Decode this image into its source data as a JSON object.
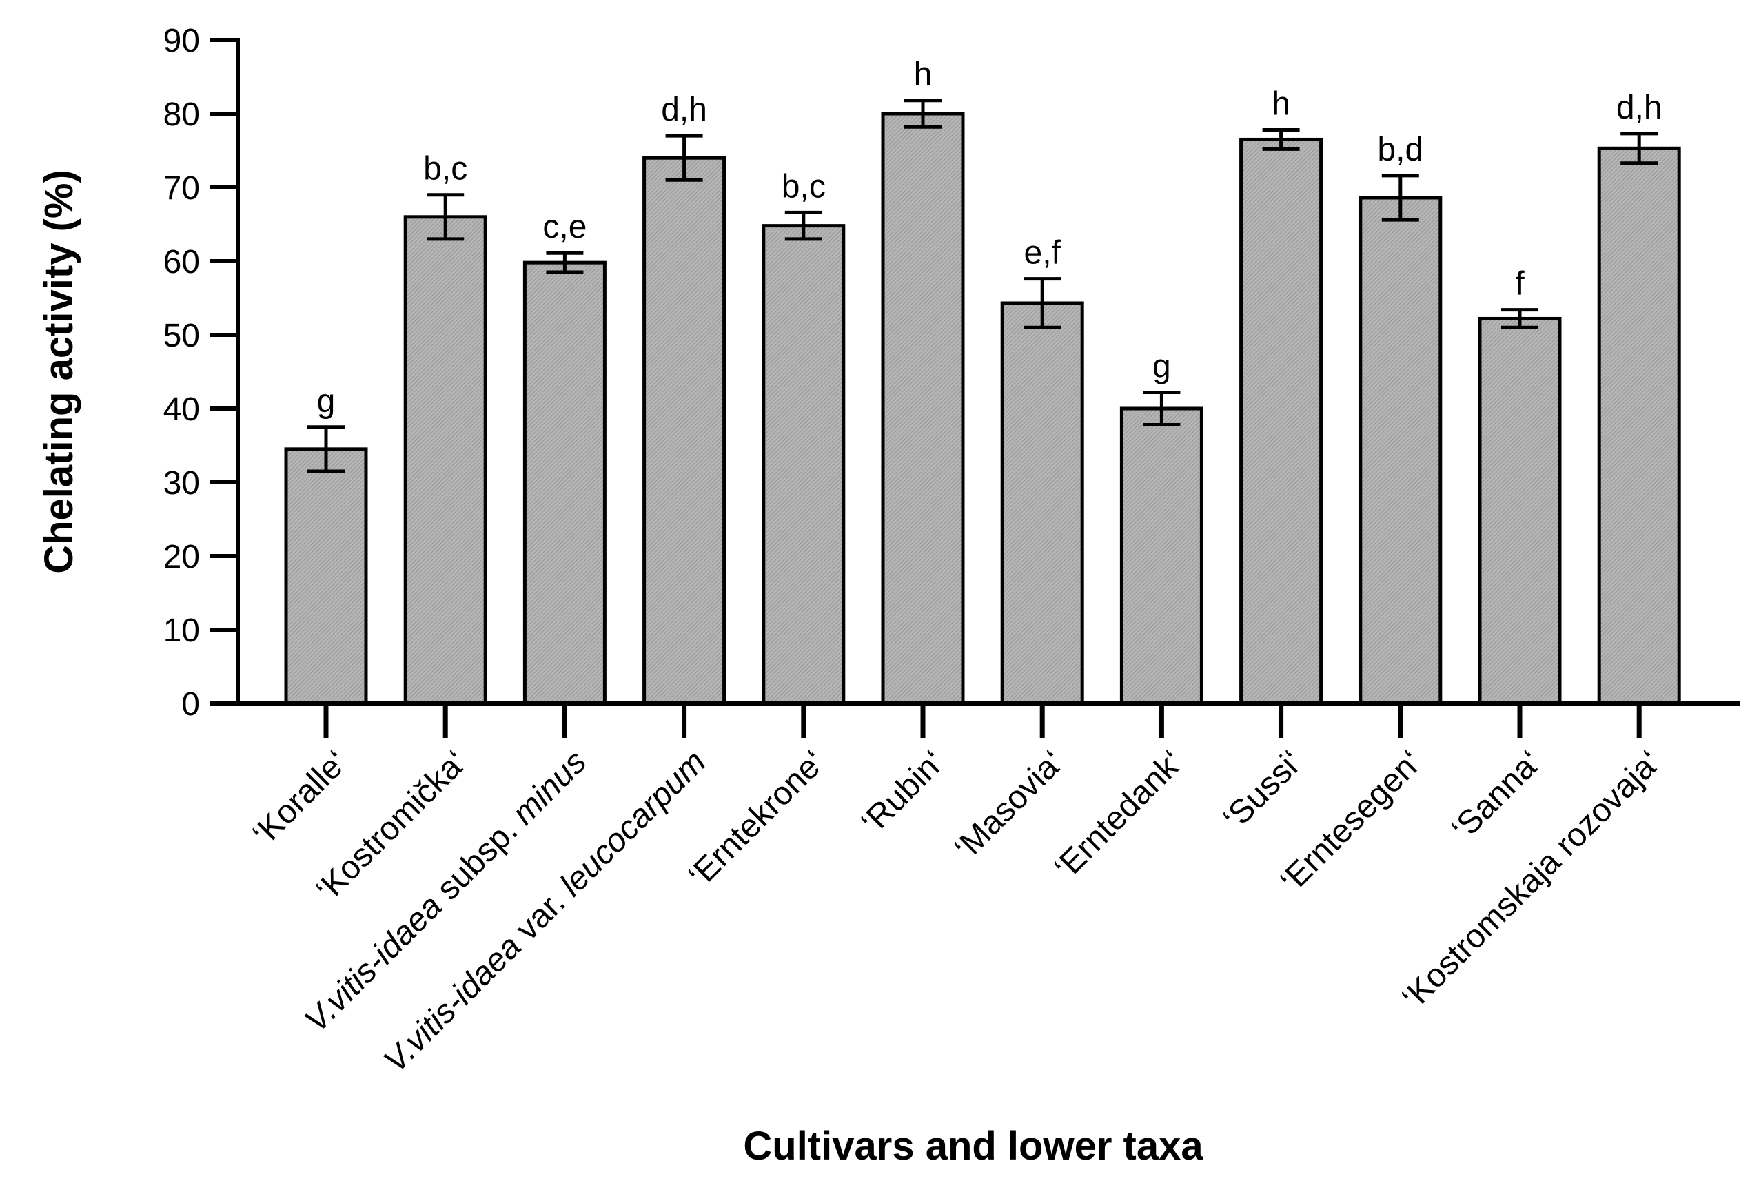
{
  "chart_data": {
    "type": "bar",
    "title": "",
    "xlabel": "Cultivars and lower taxa",
    "ylabel": "Chelating activity (%)",
    "ylim": [
      0,
      90
    ],
    "yticks": [
      "0",
      "10",
      "20",
      "30",
      "40",
      "50",
      "60",
      "70",
      "80",
      "90"
    ],
    "bar_color": "#b5b5b5",
    "categories": [
      {
        "parts": [
          {
            "text": "‘Koralle‘",
            "italic": false
          }
        ]
      },
      {
        "parts": [
          {
            "text": "‘Kostromička‘",
            "italic": false
          }
        ]
      },
      {
        "parts": [
          {
            "text": "V.vitis-idaea",
            "italic": true
          },
          {
            "text": " subsp. ",
            "italic": false
          },
          {
            "text": "minus",
            "italic": true
          }
        ]
      },
      {
        "parts": [
          {
            "text": "V.vitis-idaea",
            "italic": true
          },
          {
            "text": " var. ",
            "italic": false
          },
          {
            "text": "leucocarpum",
            "italic": true
          }
        ]
      },
      {
        "parts": [
          {
            "text": "‘Erntekrone‘",
            "italic": false
          }
        ]
      },
      {
        "parts": [
          {
            "text": "‘Rubin‘",
            "italic": false
          }
        ]
      },
      {
        "parts": [
          {
            "text": "‘Masovia‘",
            "italic": false
          }
        ]
      },
      {
        "parts": [
          {
            "text": "‘Erntedank‘",
            "italic": false
          }
        ]
      },
      {
        "parts": [
          {
            "text": "‘Sussi‘",
            "italic": false
          }
        ]
      },
      {
        "parts": [
          {
            "text": "‘Erntesegen‘",
            "italic": false
          }
        ]
      },
      {
        "parts": [
          {
            "text": "‘Sanna‘",
            "italic": false
          }
        ]
      },
      {
        "parts": [
          {
            "text": "‘Kostromskaja rozovaja‘",
            "italic": false
          }
        ]
      }
    ],
    "values": [
      34.5,
      66.0,
      59.8,
      74.0,
      64.8,
      80.0,
      54.3,
      40.0,
      76.5,
      68.6,
      52.2,
      75.3
    ],
    "errors": [
      3.0,
      3.0,
      1.3,
      3.0,
      1.8,
      1.8,
      3.3,
      2.2,
      1.3,
      3.0,
      1.2,
      2.0
    ],
    "significance": [
      "g",
      "b,c",
      "c,e",
      "d,h",
      "b,c",
      "h",
      "e,f",
      "g",
      "h",
      "b,d",
      "f",
      "d,h"
    ]
  }
}
